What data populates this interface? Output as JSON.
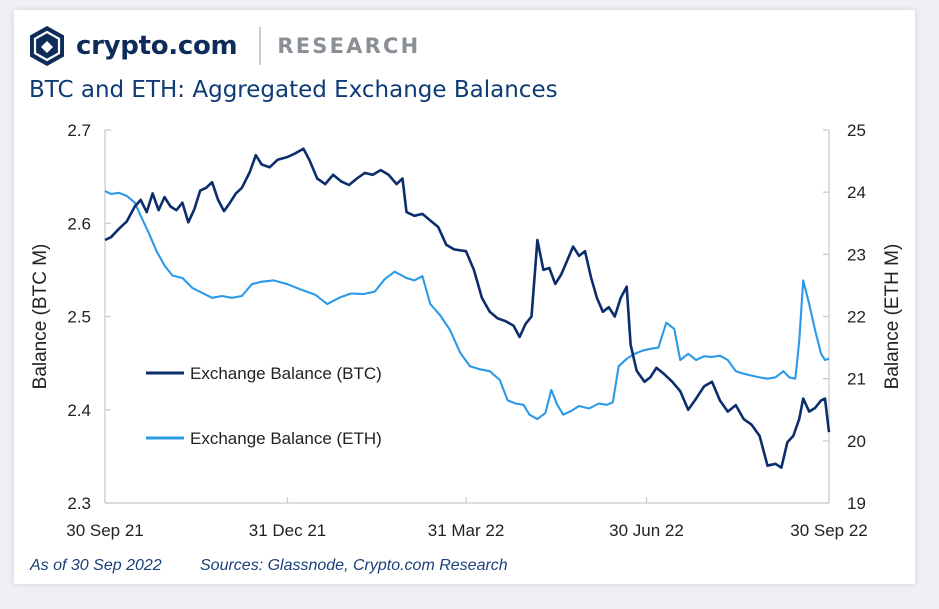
{
  "header": {
    "brand": "crypto.com",
    "section": "RESEARCH",
    "title": "BTC and ETH: Aggregated Exchange Balances"
  },
  "footer": {
    "as_of": "As of 30 Sep 2022",
    "sources": "Sources: Glassnode, Crypto.com Research"
  },
  "colors": {
    "btc": "#0c2d6b",
    "eth": "#2a9ae8",
    "axis": "#c9c9c9",
    "text": "#222222",
    "title": "#0e3a76",
    "brand": "#0e2c5a"
  },
  "icons": {
    "logo": "crypto-com-shield-icon"
  },
  "chart_data": {
    "type": "line",
    "title": "BTC and ETH: Aggregated Exchange Balances",
    "y_left_label": "Balance (BTC M)",
    "y_right_label": "Balance (ETH M)",
    "y_left_range": [
      2.3,
      2.7
    ],
    "y_right_range": [
      19,
      25
    ],
    "y_left_ticks": [
      "2.3",
      "2.4",
      "2.5",
      "2.6",
      "2.7"
    ],
    "y_right_ticks": [
      "19",
      "20",
      "21",
      "22",
      "23",
      "24",
      "25"
    ],
    "x_range": [
      "2021-09-30",
      "2022-09-30"
    ],
    "x_ticks": [
      {
        "date": "2021-09-30",
        "label": "30 Sep 21"
      },
      {
        "date": "2021-12-31",
        "label": "31 Dec 21"
      },
      {
        "date": "2022-03-31",
        "label": "31 Mar 22"
      },
      {
        "date": "2022-06-30",
        "label": "30 Jun 22"
      },
      {
        "date": "2022-09-30",
        "label": "30 Sep 22"
      }
    ],
    "grid": false,
    "legend_position": "middle-left",
    "series": [
      {
        "name": "Exchange Balance (BTC)",
        "axis": "left",
        "points": [
          [
            "2021-09-30",
            2.582
          ],
          [
            "2021-10-03",
            2.585
          ],
          [
            "2021-10-07",
            2.594
          ],
          [
            "2021-10-11",
            2.602
          ],
          [
            "2021-10-15",
            2.618
          ],
          [
            "2021-10-18",
            2.625
          ],
          [
            "2021-10-21",
            2.612
          ],
          [
            "2021-10-24",
            2.632
          ],
          [
            "2021-10-27",
            2.614
          ],
          [
            "2021-10-30",
            2.628
          ],
          [
            "2021-11-02",
            2.618
          ],
          [
            "2021-11-05",
            2.614
          ],
          [
            "2021-11-08",
            2.622
          ],
          [
            "2021-11-11",
            2.601
          ],
          [
            "2021-11-14",
            2.615
          ],
          [
            "2021-11-17",
            2.635
          ],
          [
            "2021-11-20",
            2.638
          ],
          [
            "2021-11-23",
            2.644
          ],
          [
            "2021-11-26",
            2.625
          ],
          [
            "2021-11-29",
            2.613
          ],
          [
            "2021-12-02",
            2.622
          ],
          [
            "2021-12-05",
            2.632
          ],
          [
            "2021-12-08",
            2.638
          ],
          [
            "2021-12-12",
            2.655
          ],
          [
            "2021-12-15",
            2.673
          ],
          [
            "2021-12-18",
            2.663
          ],
          [
            "2021-12-22",
            2.66
          ],
          [
            "2021-12-26",
            2.668
          ],
          [
            "2021-12-31",
            2.671
          ],
          [
            "2022-01-04",
            2.675
          ],
          [
            "2022-01-08",
            2.68
          ],
          [
            "2022-01-11",
            2.668
          ],
          [
            "2022-01-15",
            2.648
          ],
          [
            "2022-01-19",
            2.642
          ],
          [
            "2022-01-23",
            2.652
          ],
          [
            "2022-01-27",
            2.645
          ],
          [
            "2022-01-31",
            2.641
          ],
          [
            "2022-02-04",
            2.648
          ],
          [
            "2022-02-08",
            2.654
          ],
          [
            "2022-02-12",
            2.652
          ],
          [
            "2022-02-16",
            2.657
          ],
          [
            "2022-02-20",
            2.652
          ],
          [
            "2022-02-24",
            2.642
          ],
          [
            "2022-02-27",
            2.648
          ],
          [
            "2022-03-01",
            2.612
          ],
          [
            "2022-03-05",
            2.608
          ],
          [
            "2022-03-09",
            2.61
          ],
          [
            "2022-03-13",
            2.603
          ],
          [
            "2022-03-17",
            2.596
          ],
          [
            "2022-03-21",
            2.577
          ],
          [
            "2022-03-25",
            2.572
          ],
          [
            "2022-03-31",
            2.57
          ],
          [
            "2022-04-04",
            2.55
          ],
          [
            "2022-04-08",
            2.52
          ],
          [
            "2022-04-12",
            2.505
          ],
          [
            "2022-04-16",
            2.498
          ],
          [
            "2022-04-20",
            2.495
          ],
          [
            "2022-04-24",
            2.49
          ],
          [
            "2022-04-27",
            2.478
          ],
          [
            "2022-04-30",
            2.492
          ],
          [
            "2022-05-03",
            2.5
          ],
          [
            "2022-05-06",
            2.582
          ],
          [
            "2022-05-09",
            2.55
          ],
          [
            "2022-05-12",
            2.552
          ],
          [
            "2022-05-15",
            2.535
          ],
          [
            "2022-05-18",
            2.545
          ],
          [
            "2022-05-21",
            2.56
          ],
          [
            "2022-05-24",
            2.575
          ],
          [
            "2022-05-27",
            2.565
          ],
          [
            "2022-05-30",
            2.57
          ],
          [
            "2022-06-02",
            2.542
          ],
          [
            "2022-06-05",
            2.52
          ],
          [
            "2022-06-08",
            2.505
          ],
          [
            "2022-06-11",
            2.51
          ],
          [
            "2022-06-14",
            2.5
          ],
          [
            "2022-06-17",
            2.52
          ],
          [
            "2022-06-20",
            2.532
          ],
          [
            "2022-06-22",
            2.47
          ],
          [
            "2022-06-25",
            2.442
          ],
          [
            "2022-06-29",
            2.43
          ],
          [
            "2022-07-02",
            2.435
          ],
          [
            "2022-07-05",
            2.445
          ],
          [
            "2022-07-09",
            2.438
          ],
          [
            "2022-07-13",
            2.43
          ],
          [
            "2022-07-17",
            2.42
          ],
          [
            "2022-07-21",
            2.4
          ],
          [
            "2022-07-25",
            2.412
          ],
          [
            "2022-07-29",
            2.425
          ],
          [
            "2022-08-02",
            2.43
          ],
          [
            "2022-08-06",
            2.41
          ],
          [
            "2022-08-10",
            2.398
          ],
          [
            "2022-08-14",
            2.405
          ],
          [
            "2022-08-18",
            2.39
          ],
          [
            "2022-08-22",
            2.384
          ],
          [
            "2022-08-26",
            2.372
          ],
          [
            "2022-08-30",
            2.34
          ],
          [
            "2022-09-03",
            2.342
          ],
          [
            "2022-09-06",
            2.338
          ],
          [
            "2022-09-09",
            2.365
          ],
          [
            "2022-09-12",
            2.372
          ],
          [
            "2022-09-15",
            2.39
          ],
          [
            "2022-09-17",
            2.412
          ],
          [
            "2022-09-20",
            2.398
          ],
          [
            "2022-09-23",
            2.402
          ],
          [
            "2022-09-26",
            2.41
          ],
          [
            "2022-09-28",
            2.412
          ],
          [
            "2022-09-30",
            2.376
          ]
        ]
      },
      {
        "name": "Exchange Balance (ETH)",
        "axis": "right",
        "points": [
          [
            "2021-09-30",
            24.02
          ],
          [
            "2021-10-03",
            23.97
          ],
          [
            "2021-10-07",
            23.99
          ],
          [
            "2021-10-11",
            23.94
          ],
          [
            "2021-10-15",
            23.83
          ],
          [
            "2021-10-18",
            23.62
          ],
          [
            "2021-10-22",
            23.35
          ],
          [
            "2021-10-26",
            23.05
          ],
          [
            "2021-10-30",
            22.82
          ],
          [
            "2021-11-03",
            22.66
          ],
          [
            "2021-11-08",
            22.62
          ],
          [
            "2021-11-13",
            22.46
          ],
          [
            "2021-11-18",
            22.38
          ],
          [
            "2021-11-23",
            22.3
          ],
          [
            "2021-11-28",
            22.33
          ],
          [
            "2021-12-03",
            22.3
          ],
          [
            "2021-12-08",
            22.33
          ],
          [
            "2021-12-13",
            22.52
          ],
          [
            "2021-12-18",
            22.56
          ],
          [
            "2021-12-24",
            22.58
          ],
          [
            "2021-12-31",
            22.52
          ],
          [
            "2022-01-07",
            22.43
          ],
          [
            "2022-01-14",
            22.35
          ],
          [
            "2022-01-20",
            22.2
          ],
          [
            "2022-01-26",
            22.3
          ],
          [
            "2022-02-01",
            22.37
          ],
          [
            "2022-02-07",
            22.36
          ],
          [
            "2022-02-13",
            22.4
          ],
          [
            "2022-02-18",
            22.6
          ],
          [
            "2022-02-23",
            22.72
          ],
          [
            "2022-03-01",
            22.62
          ],
          [
            "2022-03-05",
            22.58
          ],
          [
            "2022-03-09",
            22.65
          ],
          [
            "2022-03-13",
            22.2
          ],
          [
            "2022-03-18",
            22.02
          ],
          [
            "2022-03-23",
            21.78
          ],
          [
            "2022-03-28",
            21.42
          ],
          [
            "2022-04-02",
            21.2
          ],
          [
            "2022-04-07",
            21.15
          ],
          [
            "2022-04-12",
            21.12
          ],
          [
            "2022-04-17",
            20.98
          ],
          [
            "2022-04-21",
            20.65
          ],
          [
            "2022-04-25",
            20.6
          ],
          [
            "2022-04-29",
            20.58
          ],
          [
            "2022-05-02",
            20.42
          ],
          [
            "2022-05-06",
            20.35
          ],
          [
            "2022-05-10",
            20.45
          ],
          [
            "2022-05-13",
            20.82
          ],
          [
            "2022-05-16",
            20.58
          ],
          [
            "2022-05-19",
            20.42
          ],
          [
            "2022-05-23",
            20.48
          ],
          [
            "2022-05-27",
            20.56
          ],
          [
            "2022-06-01",
            20.52
          ],
          [
            "2022-06-06",
            20.6
          ],
          [
            "2022-06-10",
            20.58
          ],
          [
            "2022-06-13",
            20.62
          ],
          [
            "2022-06-16",
            21.2
          ],
          [
            "2022-06-20",
            21.32
          ],
          [
            "2022-06-24",
            21.4
          ],
          [
            "2022-06-28",
            21.45
          ],
          [
            "2022-07-02",
            21.48
          ],
          [
            "2022-07-06",
            21.5
          ],
          [
            "2022-07-10",
            21.9
          ],
          [
            "2022-07-14",
            21.8
          ],
          [
            "2022-07-17",
            21.3
          ],
          [
            "2022-07-21",
            21.4
          ],
          [
            "2022-07-25",
            21.3
          ],
          [
            "2022-07-29",
            21.36
          ],
          [
            "2022-08-02",
            21.35
          ],
          [
            "2022-08-06",
            21.37
          ],
          [
            "2022-08-10",
            21.3
          ],
          [
            "2022-08-14",
            21.12
          ],
          [
            "2022-08-18",
            21.08
          ],
          [
            "2022-08-22",
            21.05
          ],
          [
            "2022-08-26",
            21.02
          ],
          [
            "2022-08-30",
            21.0
          ],
          [
            "2022-09-03",
            21.02
          ],
          [
            "2022-09-07",
            21.12
          ],
          [
            "2022-09-10",
            21.02
          ],
          [
            "2022-09-13",
            21.0
          ],
          [
            "2022-09-15",
            21.6
          ],
          [
            "2022-09-17",
            22.58
          ],
          [
            "2022-09-20",
            22.2
          ],
          [
            "2022-09-23",
            21.78
          ],
          [
            "2022-09-26",
            21.4
          ],
          [
            "2022-09-28",
            21.3
          ],
          [
            "2022-09-30",
            21.32
          ]
        ]
      }
    ]
  }
}
